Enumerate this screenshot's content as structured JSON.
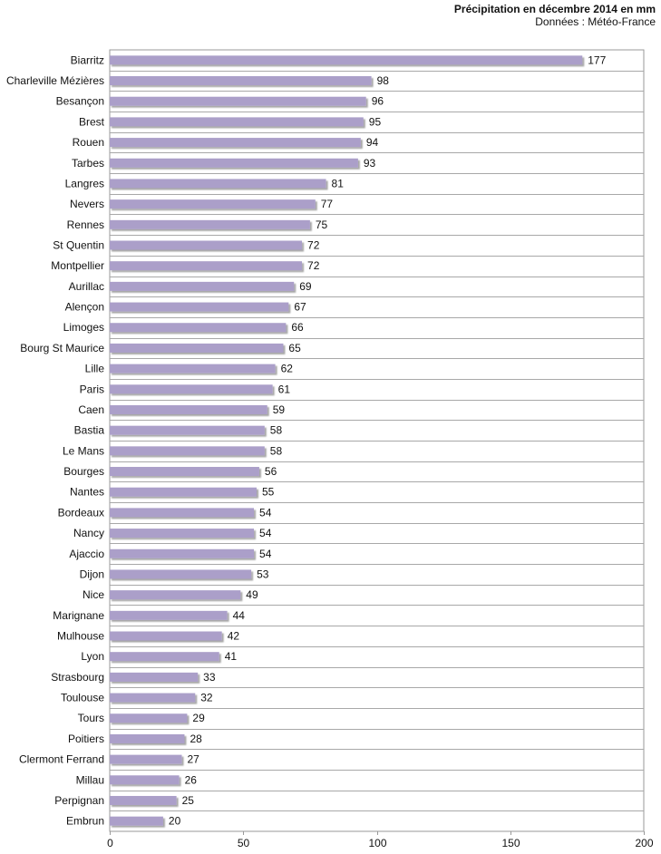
{
  "chart_data": {
    "type": "bar",
    "orientation": "horizontal",
    "title": "Précipitation en décembre 2014 en mm",
    "subtitle": "Données : Météo-France",
    "xlabel": "",
    "ylabel": "",
    "xlim": [
      0,
      200
    ],
    "x_ticks": [
      "0",
      "50",
      "100",
      "150",
      "200"
    ],
    "grid": true,
    "bar_color": "#ab9fc9",
    "categories": [
      "Biarritz",
      "Charleville Mézières",
      "Besançon",
      "Brest",
      "Rouen",
      "Tarbes",
      "Langres",
      "Nevers",
      "Rennes",
      "St Quentin",
      "Montpellier",
      "Aurillac",
      "Alençon",
      "Limoges",
      "Bourg St Maurice",
      "Lille",
      "Paris",
      "Caen",
      "Bastia",
      "Le Mans",
      "Bourges",
      "Nantes",
      "Bordeaux",
      "Nancy",
      "Ajaccio",
      "Dijon",
      "Nice",
      "Marignane",
      "Mulhouse",
      "Lyon",
      "Strasbourg",
      "Toulouse",
      "Tours",
      "Poitiers",
      "Clermont Ferrand",
      "Millau",
      "Perpignan",
      "Embrun"
    ],
    "values": [
      177,
      98,
      96,
      95,
      94,
      93,
      81,
      77,
      75,
      72,
      72,
      69,
      67,
      66,
      65,
      62,
      61,
      59,
      58,
      58,
      56,
      55,
      54,
      54,
      54,
      53,
      49,
      44,
      42,
      41,
      33,
      32,
      29,
      28,
      27,
      26,
      25,
      20
    ]
  }
}
